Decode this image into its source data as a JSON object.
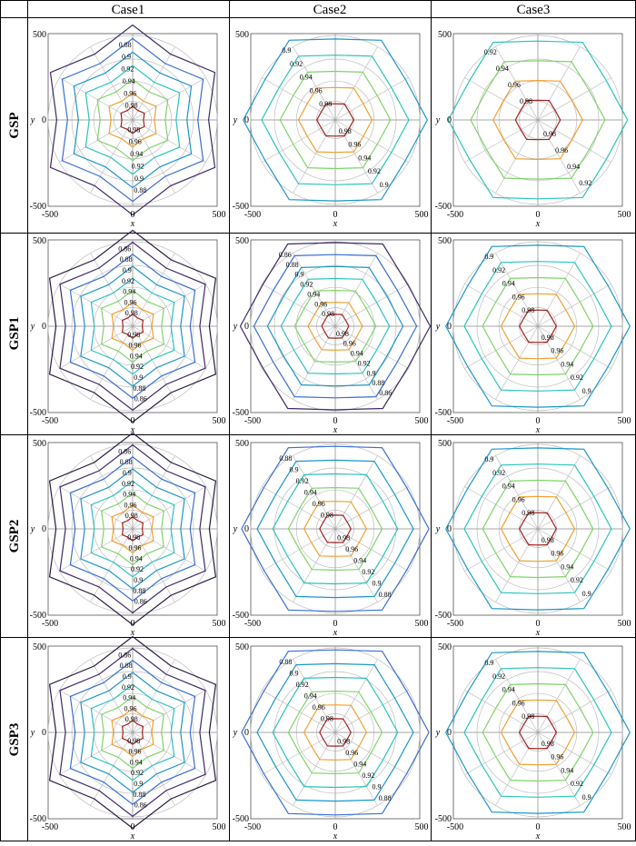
{
  "columns": [
    "Case1",
    "Case2",
    "Case3"
  ],
  "rows": [
    "GSP",
    "GSP1",
    "GSP2",
    "GSP3"
  ],
  "axes": {
    "xlabel": "x",
    "ylabel": "y",
    "xticks": [
      "-500",
      "0",
      "500"
    ],
    "yticks": [
      "500",
      "0",
      "-500"
    ]
  },
  "colors": {
    "0.84": "#2a1a3e",
    "0.86": "#3e2a66",
    "0.88": "#3a6fd0",
    "0.9": "#1d96c8",
    "0.92": "#2bc3bd",
    "0.94": "#7fd46a",
    "0.96": "#f0a030",
    "0.98": "#a02020"
  },
  "chart_data": [
    {
      "type": "contour",
      "row": "GSP",
      "column": "Case1",
      "xlim": [
        -500,
        500
      ],
      "ylim": [
        -500,
        500
      ],
      "levels": [
        0.86,
        0.88,
        0.9,
        0.92,
        0.94,
        0.96,
        0.98
      ],
      "contour_labels": [
        "0.86",
        "0.88",
        "0.9",
        "0.92",
        "0.94",
        "0.96",
        "0.98"
      ]
    },
    {
      "type": "contour",
      "row": "GSP",
      "column": "Case2",
      "xlim": [
        -500,
        500
      ],
      "ylim": [
        -500,
        500
      ],
      "levels": [
        0.9,
        0.92,
        0.94,
        0.96,
        0.98
      ],
      "contour_labels": [
        "0.9",
        "0.92",
        "0.94",
        "0.96",
        "0.98"
      ]
    },
    {
      "type": "contour",
      "row": "GSP",
      "column": "Case3",
      "xlim": [
        -500,
        500
      ],
      "ylim": [
        -500,
        500
      ],
      "levels": [
        0.92,
        0.94,
        0.96,
        0.98
      ],
      "contour_labels": [
        "0.92",
        "0.94",
        "0.96",
        "0.98"
      ]
    },
    {
      "type": "contour",
      "row": "GSP1",
      "column": "Case1",
      "xlim": [
        -500,
        500
      ],
      "ylim": [
        -500,
        500
      ],
      "levels": [
        0.84,
        0.86,
        0.88,
        0.9,
        0.92,
        0.94,
        0.96,
        0.98
      ],
      "contour_labels": [
        "0.84",
        "0.86",
        "0.88",
        "0.9",
        "0.92",
        "0.94",
        "0.96",
        "0.98"
      ]
    },
    {
      "type": "contour",
      "row": "GSP1",
      "column": "Case2",
      "xlim": [
        -500,
        500
      ],
      "ylim": [
        -500,
        500
      ],
      "levels": [
        0.86,
        0.88,
        0.9,
        0.92,
        0.94,
        0.96,
        0.98
      ],
      "contour_labels": [
        "0.86",
        "0.88",
        "0.9",
        "0.92",
        "0.94",
        "0.96",
        "0.98"
      ]
    },
    {
      "type": "contour",
      "row": "GSP1",
      "column": "Case3",
      "xlim": [
        -500,
        500
      ],
      "ylim": [
        -500,
        500
      ],
      "levels": [
        0.9,
        0.92,
        0.94,
        0.96,
        0.98
      ],
      "contour_labels": [
        "0.9",
        "0.92",
        "0.94",
        "0.96",
        "0.98"
      ]
    },
    {
      "type": "contour",
      "row": "GSP2",
      "column": "Case1",
      "xlim": [
        -500,
        500
      ],
      "ylim": [
        -500,
        500
      ],
      "levels": [
        0.84,
        0.86,
        0.88,
        0.9,
        0.92,
        0.94,
        0.96,
        0.98
      ],
      "contour_labels": [
        "0.84",
        "0.86",
        "0.88",
        "0.9",
        "0.92",
        "0.94",
        "0.96",
        "0.98"
      ]
    },
    {
      "type": "contour",
      "row": "GSP2",
      "column": "Case2",
      "xlim": [
        -500,
        500
      ],
      "ylim": [
        -500,
        500
      ],
      "levels": [
        0.88,
        0.9,
        0.92,
        0.94,
        0.96,
        0.98
      ],
      "contour_labels": [
        "0.88",
        "0.9",
        "0.92",
        "0.94",
        "0.96",
        "0.98"
      ]
    },
    {
      "type": "contour",
      "row": "GSP2",
      "column": "Case3",
      "xlim": [
        -500,
        500
      ],
      "ylim": [
        -500,
        500
      ],
      "levels": [
        0.9,
        0.92,
        0.94,
        0.96,
        0.98
      ],
      "contour_labels": [
        "0.9",
        "0.92",
        "0.94",
        "0.96",
        "0.98"
      ]
    },
    {
      "type": "contour",
      "row": "GSP3",
      "column": "Case1",
      "xlim": [
        -500,
        500
      ],
      "ylim": [
        -500,
        500
      ],
      "levels": [
        0.84,
        0.86,
        0.88,
        0.9,
        0.92,
        0.94,
        0.96,
        0.98
      ],
      "contour_labels": [
        "0.84",
        "0.86",
        "0.88",
        "0.9",
        "0.92",
        "0.94",
        "0.96",
        "0.98"
      ]
    },
    {
      "type": "contour",
      "row": "GSP3",
      "column": "Case2",
      "xlim": [
        -500,
        500
      ],
      "ylim": [
        -500,
        500
      ],
      "levels": [
        0.88,
        0.9,
        0.92,
        0.94,
        0.96,
        0.98
      ],
      "contour_labels": [
        "0.88",
        "0.9",
        "0.92",
        "0.94",
        "0.96",
        "0.98"
      ]
    },
    {
      "type": "contour",
      "row": "GSP3",
      "column": "Case3",
      "xlim": [
        -500,
        500
      ],
      "ylim": [
        -500,
        500
      ],
      "levels": [
        0.9,
        0.92,
        0.94,
        0.96,
        0.98
      ],
      "contour_labels": [
        "0.9",
        "0.92",
        "0.94",
        "0.96",
        "0.98"
      ]
    }
  ]
}
